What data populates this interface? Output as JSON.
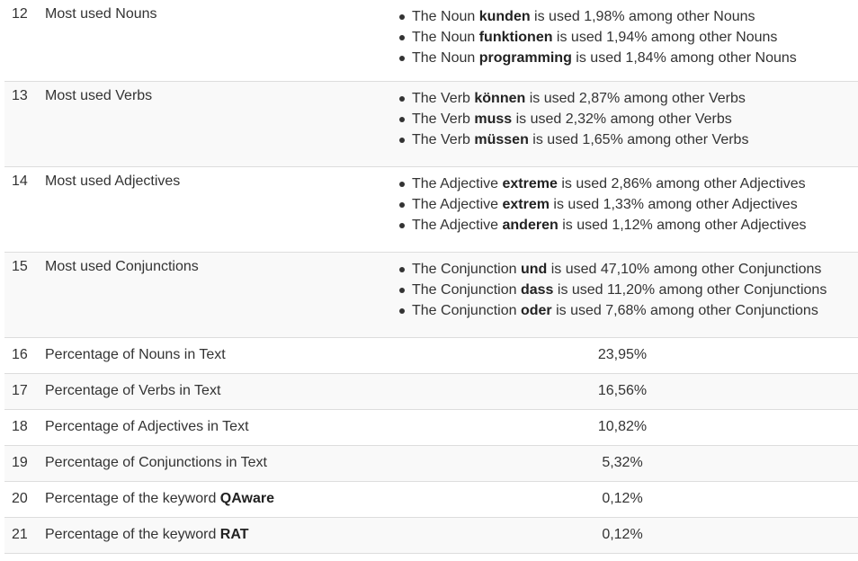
{
  "rows": [
    {
      "num": "12",
      "label": "Most used Nouns",
      "items": [
        {
          "pre": "The Noun ",
          "word": "kunden",
          "post": " is used 1,98% among other Nouns"
        },
        {
          "pre": "The Noun ",
          "word": "funktionen",
          "post": " is used 1,94% among other Nouns"
        },
        {
          "pre": "The Noun ",
          "word": "programming",
          "post": " is used 1,84% among other Nouns"
        }
      ]
    },
    {
      "num": "13",
      "label": "Most used Verbs",
      "items": [
        {
          "pre": "The Verb ",
          "word": "können",
          "post": " is used 2,87% among other Verbs"
        },
        {
          "pre": "The Verb ",
          "word": "muss",
          "post": " is used 2,32% among other Verbs"
        },
        {
          "pre": "The Verb ",
          "word": "müssen",
          "post": " is used 1,65% among other Verbs"
        }
      ]
    },
    {
      "num": "14",
      "label": "Most used Adjectives",
      "items": [
        {
          "pre": "The Adjective ",
          "word": "extreme",
          "post": " is used 2,86% among other Adjectives"
        },
        {
          "pre": "The Adjective ",
          "word": "extrem",
          "post": " is used 1,33% among other Adjectives"
        },
        {
          "pre": "The Adjective ",
          "word": "anderen",
          "post": " is used 1,12% among other Adjectives"
        }
      ]
    },
    {
      "num": "15",
      "label": "Most used Conjunctions",
      "items": [
        {
          "pre": "The Conjunction ",
          "word": "und",
          "post": " is used 47,10% among other Conjunctions"
        },
        {
          "pre": "The Conjunction ",
          "word": "dass",
          "post": " is used 11,20% among other Conjunctions"
        },
        {
          "pre": "The Conjunction ",
          "word": "oder",
          "post": " is used 7,68% among other Conjunctions"
        }
      ]
    },
    {
      "num": "16",
      "label": "Percentage of Nouns in Text",
      "value": "23,95%"
    },
    {
      "num": "17",
      "label": "Percentage of Verbs in Text",
      "value": "16,56%"
    },
    {
      "num": "18",
      "label": "Percentage of Adjectives in Text",
      "value": "10,82%"
    },
    {
      "num": "19",
      "label": "Percentage of Conjunctions in Text",
      "value": "5,32%"
    },
    {
      "num": "20",
      "label": "Percentage of the keyword ",
      "keyword": "QAware",
      "value": "0,12%"
    },
    {
      "num": "21",
      "label": "Percentage of the keyword ",
      "keyword": "RAT",
      "value": "0,12%"
    }
  ]
}
